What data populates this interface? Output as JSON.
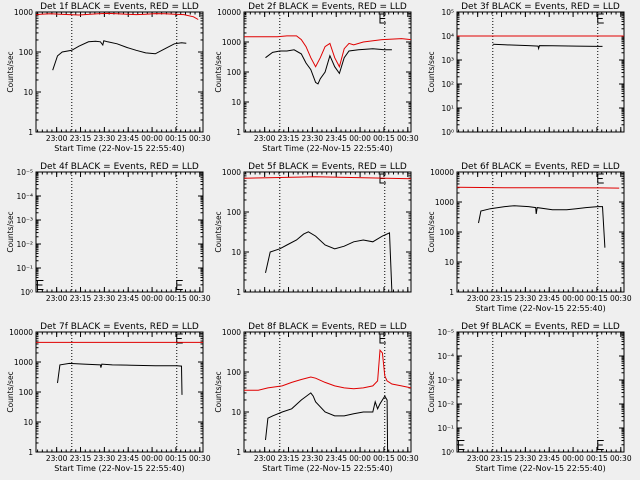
{
  "window": {
    "background": "#efefef",
    "event_color": "#000000",
    "lld_color": "#e00000"
  },
  "chart_data": [
    {
      "type": "line",
      "title": "Det 1f BLACK = Events, RED = LLD",
      "xlabel": "Start Time (22-Nov-15 22:55:40)",
      "ylabel": "Counts/sec",
      "x_ticks": [
        "23:00",
        "23:15",
        "23:30",
        "23:45",
        "00:00",
        "00:15",
        "00:30"
      ],
      "y_ticks": [
        "1",
        "10",
        "100",
        "1000"
      ],
      "ylim": [
        1,
        1000
      ],
      "log_y": true,
      "xlim": [
        0,
        35
      ],
      "vlines": [
        7.5,
        29.5
      ],
      "markers": [],
      "series": [
        {
          "name": "LLD",
          "x": [
            0,
            1,
            3,
            5,
            7,
            9,
            11,
            13,
            15,
            17,
            19,
            21,
            23,
            25,
            27,
            29,
            31,
            33,
            34
          ],
          "y": [
            850,
            880,
            900,
            880,
            860,
            840,
            870,
            900,
            920,
            900,
            880,
            860,
            880,
            910,
            900,
            880,
            860,
            760,
            650
          ]
        },
        {
          "name": "Events",
          "x": [
            3.5,
            4.5,
            5.5,
            7.5,
            9,
            11,
            12.5,
            13.5,
            14,
            14.2,
            15,
            17,
            19,
            21,
            23,
            25,
            27,
            29,
            30.5,
            31.5
          ],
          "y": [
            35,
            80,
            100,
            110,
            140,
            180,
            185,
            180,
            150,
            190,
            180,
            160,
            130,
            110,
            95,
            90,
            120,
            160,
            170,
            165
          ]
        }
      ]
    },
    {
      "type": "line",
      "title": "Det 2f BLACK = Events, RED = LLD",
      "xlabel": "Start Time (22-Nov-15 22:55:40)",
      "ylabel": "Counts/sec",
      "x_ticks": [
        "23:00",
        "23:15",
        "23:30",
        "23:45",
        "00:00",
        "00:15",
        "00:30"
      ],
      "y_ticks": [
        "1",
        "10",
        "100",
        "1000",
        "10000"
      ],
      "ylim": [
        1,
        10000
      ],
      "log_y": true,
      "xlim": [
        0,
        35
      ],
      "vlines": [
        7.5,
        29.5
      ],
      "markers": [
        {
          "x": 28.5,
          "y": 10000
        }
      ],
      "series": [
        {
          "name": "LLD",
          "x": [
            0,
            4,
            7,
            9,
            11,
            12,
            13,
            14,
            15,
            16,
            17,
            18,
            19,
            20,
            21,
            22,
            23,
            25,
            29,
            33,
            35
          ],
          "y": [
            1500,
            1500,
            1500,
            1600,
            1600,
            1200,
            700,
            300,
            150,
            300,
            700,
            900,
            300,
            150,
            600,
            900,
            800,
            1000,
            1200,
            1300,
            1200
          ]
        },
        {
          "name": "Events",
          "x": [
            4.5,
            6,
            7.5,
            9,
            10.5,
            12,
            13,
            14,
            15,
            15.5,
            16,
            17,
            18,
            19,
            20,
            21,
            22,
            24,
            27,
            29.5,
            31
          ],
          "y": [
            300,
            450,
            500,
            500,
            550,
            400,
            200,
            120,
            45,
            40,
            60,
            100,
            350,
            150,
            90,
            300,
            500,
            550,
            600,
            550,
            550
          ]
        }
      ]
    },
    {
      "type": "line",
      "title": "Det 3f BLACK = Events, RED = LLD",
      "xlabel": "",
      "ylabel": "Counts/sec",
      "x_ticks": [],
      "y_ticks": [
        "10⁰",
        "10¹",
        "10²",
        "10³",
        "10⁴",
        "10⁵"
      ],
      "ylim": [
        1,
        100000
      ],
      "log_y": true,
      "xlim": [
        0,
        35
      ],
      "vlines": [
        7.5,
        29.5
      ],
      "markers": [
        {
          "x": 29.5,
          "y": 100000
        }
      ],
      "series": [
        {
          "name": "LLD",
          "x": [
            0,
            35
          ],
          "y": [
            10000,
            10000
          ]
        },
        {
          "name": "Events",
          "x": [
            7.5,
            10,
            15,
            17,
            17.1,
            17.3,
            20,
            25,
            29.5,
            30.5
          ],
          "y": [
            4500,
            4300,
            4000,
            3800,
            3000,
            4000,
            3900,
            3800,
            3700,
            3700
          ]
        }
      ]
    },
    {
      "type": "line",
      "title": "Det 4f BLACK = Events, RED = LLD",
      "xlabel": "",
      "ylabel": "Counts/sec",
      "x_ticks": [
        "23:00",
        "23:15",
        "23:30",
        "23:45",
        "00:00",
        "00:15",
        "00:30"
      ],
      "y_ticks": [
        "10⁰",
        "10⁻¹",
        "10⁻²",
        "10⁻³",
        "10⁻⁴",
        "10⁻⁵"
      ],
      "ylim": [
        1,
        100000
      ],
      "log_y": true,
      "xlim": [
        0,
        35
      ],
      "vlines": [
        7.5,
        29.5
      ],
      "markers": [
        {
          "x": 0.3,
          "y": 3
        },
        {
          "x": 29.5,
          "y": 3
        }
      ],
      "series": []
    },
    {
      "type": "line",
      "title": "Det 5f BLACK = Events, RED = LLD",
      "xlabel": "",
      "ylabel": "Counts/sec",
      "x_ticks": [],
      "y_ticks": [
        "1",
        "10",
        "100",
        "1000"
      ],
      "ylim": [
        1,
        1000
      ],
      "log_y": true,
      "xlim": [
        0,
        35
      ],
      "vlines": [
        7.5,
        29.5
      ],
      "markers": [
        {
          "x": 28.5,
          "y": 1000
        }
      ],
      "series": [
        {
          "name": "LLD",
          "x": [
            0,
            5,
            10,
            15,
            20,
            25,
            30,
            35
          ],
          "y": [
            700,
            720,
            740,
            760,
            740,
            720,
            700,
            680
          ]
        },
        {
          "name": "Events",
          "x": [
            4.5,
            5.5,
            7.5,
            9,
            11,
            12.5,
            13.5,
            15,
            17,
            19,
            21,
            23,
            25,
            27,
            29,
            30.5,
            31
          ],
          "y": [
            3,
            10,
            12,
            15,
            20,
            28,
            32,
            25,
            15,
            12,
            14,
            18,
            20,
            18,
            25,
            30,
            1
          ]
        }
      ]
    },
    {
      "type": "line",
      "title": "Det 6f BLACK = Events, RED = LLD",
      "xlabel": "Start Time (22-Nov-15 22:55:40)",
      "ylabel": "Counts/sec",
      "x_ticks": [
        "23:00",
        "23:15",
        "23:30",
        "23:45",
        "00:00",
        "00:15",
        "00:30"
      ],
      "y_ticks": [
        "1",
        "10",
        "100",
        "1000",
        "10000"
      ],
      "ylim": [
        1,
        10000
      ],
      "log_y": true,
      "xlim": [
        0,
        35
      ],
      "vlines": [
        7.5,
        29.5
      ],
      "markers": [
        {
          "x": 29.5,
          "y": 10000
        }
      ],
      "series": [
        {
          "name": "LLD",
          "x": [
            0,
            10,
            20,
            30,
            34
          ],
          "y": [
            3100,
            3000,
            3000,
            2950,
            2900
          ]
        },
        {
          "name": "Events",
          "x": [
            4.5,
            5,
            7,
            10,
            12,
            15,
            16.5,
            16.6,
            16.8,
            20,
            23,
            25,
            27,
            29.5,
            30.5,
            31
          ],
          "y": [
            200,
            500,
            600,
            700,
            750,
            700,
            650,
            400,
            650,
            550,
            550,
            600,
            650,
            700,
            700,
            30
          ]
        }
      ]
    },
    {
      "type": "line",
      "title": "Det 7f BLACK = Events, RED = LLD",
      "xlabel": "Start Time (22-Nov-15 22:55:40)",
      "ylabel": "Counts/sec",
      "x_ticks": [
        "23:00",
        "23:15",
        "23:30",
        "23:45",
        "00:00",
        "00:15",
        "00:30"
      ],
      "y_ticks": [
        "1",
        "10",
        "100",
        "1000",
        "10000"
      ],
      "ylim": [
        1,
        10000
      ],
      "log_y": true,
      "xlim": [
        0,
        35
      ],
      "vlines": [
        7.5,
        29.5
      ],
      "markers": [
        {
          "x": 29.5,
          "y": 10000
        }
      ],
      "series": [
        {
          "name": "LLD",
          "x": [
            0,
            35
          ],
          "y": [
            4500,
            4500
          ]
        },
        {
          "name": "Events",
          "x": [
            4.5,
            5,
            7,
            10,
            13.5,
            13.6,
            13.8,
            16,
            20,
            25,
            29.5,
            30.5,
            30.6
          ],
          "y": [
            200,
            800,
            900,
            850,
            800,
            650,
            850,
            800,
            780,
            750,
            750,
            730,
            80
          ]
        }
      ]
    },
    {
      "type": "line",
      "title": "Det 8f BLACK = Events, RED = LLD",
      "xlabel": "Start Time (22-Nov-15 22:55:40)",
      "ylabel": "Counts/sec",
      "x_ticks": [
        "23:00",
        "23:15",
        "23:30",
        "23:45",
        "00:00",
        "00:15",
        "00:30"
      ],
      "y_ticks": [
        "1",
        "10",
        "100",
        "1000"
      ],
      "ylim": [
        1,
        1000
      ],
      "log_y": true,
      "xlim": [
        0,
        35
      ],
      "vlines": [
        7.5,
        29.5
      ],
      "markers": [
        {
          "x": 28.5,
          "y": 1000
        }
      ],
      "series": [
        {
          "name": "LLD",
          "x": [
            0,
            3,
            5,
            8,
            10,
            12,
            14,
            15,
            17,
            19,
            21,
            23,
            25,
            27,
            28,
            28.5,
            29,
            29.5,
            30,
            31,
            33,
            35
          ],
          "y": [
            35,
            35,
            40,
            45,
            55,
            65,
            75,
            70,
            55,
            45,
            40,
            38,
            40,
            45,
            60,
            350,
            300,
            80,
            60,
            50,
            45,
            40
          ]
        },
        {
          "name": "Events",
          "x": [
            4.5,
            5,
            6,
            8,
            10,
            12,
            14,
            14.5,
            15,
            17,
            19,
            21,
            23,
            25,
            27,
            27.5,
            28,
            28.5,
            29.5,
            30,
            30.1
          ],
          "y": [
            2,
            7,
            8,
            10,
            12,
            20,
            30,
            25,
            18,
            10,
            8,
            8,
            9,
            10,
            10,
            18,
            12,
            16,
            25,
            20,
            1
          ]
        }
      ]
    },
    {
      "type": "line",
      "title": "Det 9f BLACK = Events, RED = LLD",
      "xlabel": "Start Time (22-Nov-15 22:55:40)",
      "ylabel": "Counts/sec",
      "x_ticks": [
        "23:00",
        "23:15",
        "23:30",
        "23:45",
        "00:00",
        "00:15",
        "00:30"
      ],
      "y_ticks": [
        "10⁰",
        "10⁻¹",
        "10⁻²",
        "10⁻³",
        "10⁻⁴",
        "10⁻⁵"
      ],
      "ylim": [
        1,
        100000
      ],
      "log_y": true,
      "xlim": [
        0,
        35
      ],
      "vlines": [
        7.5,
        29.5
      ],
      "markers": [
        {
          "x": 0.3,
          "y": 3
        },
        {
          "x": 29.5,
          "y": 3
        }
      ],
      "series": []
    }
  ]
}
